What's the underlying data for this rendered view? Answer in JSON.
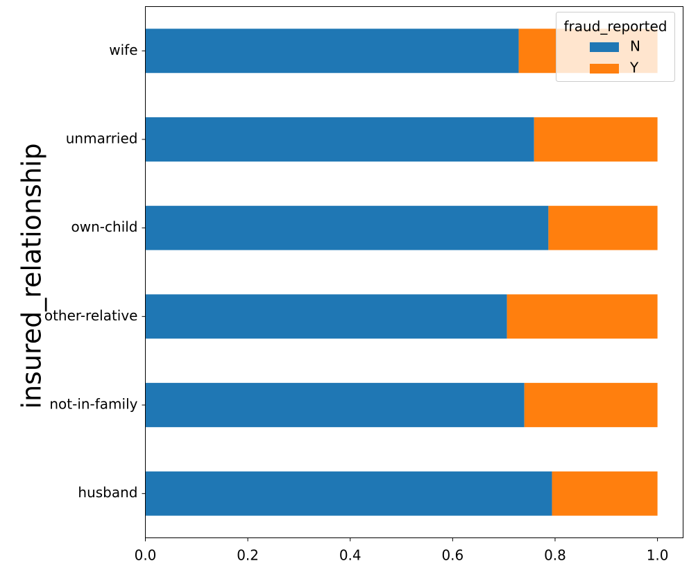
{
  "chart_data": {
    "type": "bar",
    "orientation": "horizontal",
    "stacked": true,
    "ylabel": "insured_relationship",
    "xlabel": "",
    "xlim": [
      0.0,
      1.05
    ],
    "xticks": [
      "0.0",
      "0.2",
      "0.4",
      "0.6",
      "0.8",
      "1.0"
    ],
    "categories": [
      "husband",
      "not-in-family",
      "other-relative",
      "own-child",
      "unmarried",
      "wife"
    ],
    "series": [
      {
        "name": "N",
        "color": "#1f77b4",
        "values": [
          0.794,
          0.74,
          0.706,
          0.787,
          0.759,
          0.729
        ]
      },
      {
        "name": "Y",
        "color": "#ff7f0e",
        "values": [
          0.206,
          0.26,
          0.294,
          0.213,
          0.241,
          0.271
        ]
      }
    ],
    "legend": {
      "title": "fraud_reported",
      "placement": "top-right"
    },
    "grid": false
  }
}
